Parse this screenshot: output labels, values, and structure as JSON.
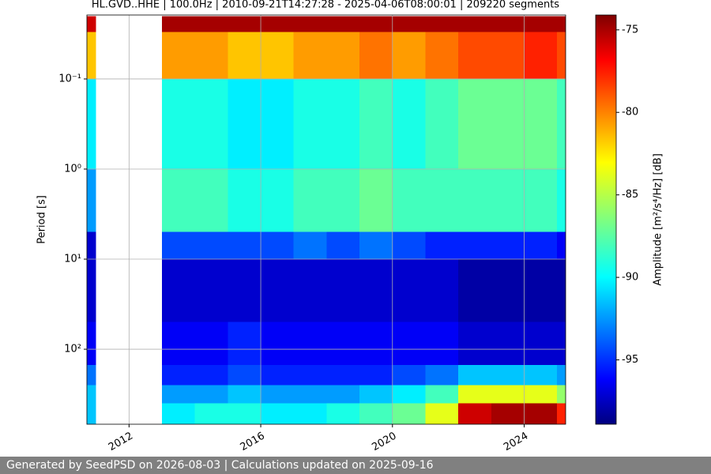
{
  "chart_data": {
    "type": "heatmap",
    "title": "HL.GVD..HHE | 100.0Hz | 2010-09-21T14:27:28 - 2025-04-06T08:00:01 | 209220 segments",
    "ylabel": "Period [s]",
    "colorbar_label": "Amplitude [m²/s⁴/Hz] [dB]",
    "y_scale": "log",
    "y_inverted": true,
    "grid": true,
    "colormap": "jet",
    "x": [
      2010.72,
      2011,
      2013,
      2014,
      2015,
      2016,
      2017,
      2018,
      2019,
      2020,
      2021,
      2022,
      2023,
      2024,
      2025,
      2025.26
    ],
    "y": [
      0.02,
      0.03,
      0.1,
      1,
      5,
      10,
      50,
      150,
      250,
      400,
      680
    ],
    "values": [
      [
        -76,
        null,
        -75,
        -75,
        -75,
        -75,
        -75,
        -75,
        -75,
        -75,
        -75,
        -75,
        -75,
        -75,
        -75
      ],
      [
        -82,
        null,
        -81,
        -81,
        -82,
        -82,
        -81,
        -81,
        -80,
        -81,
        -80,
        -79,
        -79,
        -78,
        -79
      ],
      [
        -90,
        null,
        -89,
        -89,
        -90,
        -90,
        -89,
        -89,
        -88,
        -89,
        -88,
        -87,
        -87,
        -87,
        -88
      ],
      [
        -92,
        null,
        -88,
        -88,
        -89,
        -89,
        -88,
        -88,
        -87,
        -88,
        -88,
        -88,
        -88,
        -88,
        -89
      ],
      [
        -97,
        null,
        -94,
        -94,
        -94,
        -94,
        -93,
        -94,
        -93,
        -94,
        -95,
        -95,
        -95,
        -95,
        -96
      ],
      [
        -97,
        null,
        -97,
        -97,
        -97,
        -97,
        -97,
        -97,
        -97,
        -97,
        -97,
        -98,
        -98,
        -98,
        -98
      ],
      [
        -96,
        null,
        -96,
        -96,
        -95,
        -96,
        -96,
        -96,
        -96,
        -96,
        -96,
        -97,
        -97,
        -97,
        -97
      ],
      [
        -93,
        null,
        -95,
        -95,
        -94,
        -95,
        -95,
        -95,
        -95,
        -94,
        -93,
        -91,
        -91,
        -91,
        -92
      ],
      [
        -91,
        null,
        -92,
        -92,
        -91,
        -92,
        -92,
        -92,
        -91,
        -90,
        -88,
        -84,
        -84,
        -84,
        -86
      ],
      [
        -91,
        null,
        -90,
        -89,
        -89,
        -90,
        -90,
        -89,
        -88,
        -87,
        -84,
        -76,
        -75,
        -75,
        -78
      ]
    ],
    "xlim": [
      2010.72,
      2025.26
    ],
    "xticks": [
      2012,
      2016,
      2020,
      2024
    ],
    "ylim": [
      0.0195,
      680
    ],
    "yticks": [
      {
        "value": 0.1,
        "label": "10⁻¹"
      },
      {
        "value": 1,
        "label": "10⁰"
      },
      {
        "value": 10,
        "label": "10¹"
      },
      {
        "value": 100,
        "label": "10²"
      }
    ],
    "zlim": [
      -98.9,
      -74.1
    ],
    "zticks": [
      -75,
      -80,
      -85,
      -90,
      -95
    ]
  },
  "footer": "Generated by SeedPSD on 2026-08-03 | Calculations updated on 2025-09-16"
}
